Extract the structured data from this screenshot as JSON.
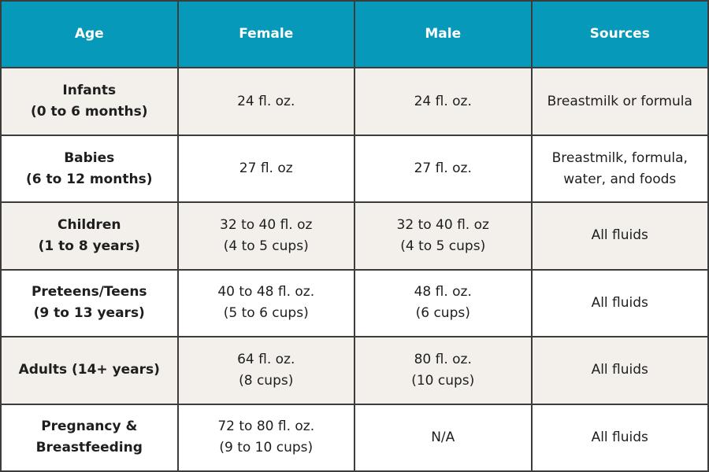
{
  "table": {
    "header": [
      "Age",
      "Female",
      "Male",
      "Sources"
    ],
    "rows": [
      [
        [
          "Infants",
          "(0 to 6 months)"
        ],
        [
          "24 fl. oz."
        ],
        [
          "24 fl. oz."
        ],
        [
          "Breastmilk or formula"
        ]
      ],
      [
        [
          "Babies",
          "(6 to 12 months)"
        ],
        [
          "27 fl. oz"
        ],
        [
          "27 fl. oz."
        ],
        [
          "Breastmilk, formula,",
          "water, and foods"
        ]
      ],
      [
        [
          "Children",
          "(1 to 8 years)"
        ],
        [
          "32 to 40 fl. oz",
          "(4 to 5 cups)"
        ],
        [
          "32 to 40 fl. oz",
          "(4 to 5 cups)"
        ],
        [
          "All fluids"
        ]
      ],
      [
        [
          "Preteens/Teens",
          "(9 to 13 years)"
        ],
        [
          "40 to 48 fl. oz.",
          "(5 to 6 cups)"
        ],
        [
          "48 fl. oz.",
          "(6 cups)"
        ],
        [
          "All fluids"
        ]
      ],
      [
        [
          "Adults (14+ years)"
        ],
        [
          "64 fl. oz.",
          "(8 cups)"
        ],
        [
          "80 fl. oz.",
          "(10 cups)"
        ],
        [
          "All fluids"
        ]
      ],
      [
        [
          "Pregnancy &",
          "Breastfeeding"
        ],
        [
          "72 to 80 fl. oz.",
          "(9 to 10 cups)"
        ],
        [
          "N/A"
        ],
        [
          "All fluids"
        ]
      ]
    ]
  }
}
